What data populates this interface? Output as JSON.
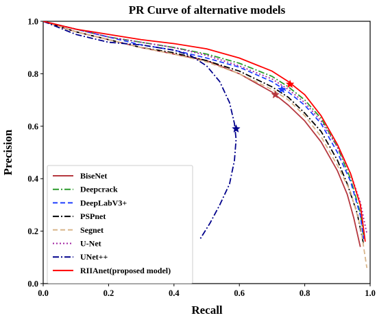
{
  "chart_data": {
    "type": "line",
    "title": "PR Curve of alternative models",
    "xlabel": "Recall",
    "ylabel": "Precision",
    "xlim": [
      0.0,
      1.0
    ],
    "ylim": [
      0.0,
      1.0
    ],
    "xticks": [
      "0.0",
      "0.2",
      "0.4",
      "0.6",
      "0.8",
      "1.0"
    ],
    "yticks": [
      "0.0",
      "0.2",
      "0.4",
      "0.6",
      "0.8",
      "1.0"
    ],
    "grid": false,
    "legend_position": "lower-left",
    "series": [
      {
        "name": "BiseNet",
        "color": "#b5373e",
        "dash": "solid",
        "x": [
          0.0,
          0.1,
          0.2,
          0.3,
          0.4,
          0.5,
          0.6,
          0.7,
          0.75,
          0.8,
          0.85,
          0.9,
          0.93,
          0.95,
          0.97
        ],
        "y": [
          1.0,
          0.96,
          0.93,
          0.9,
          0.875,
          0.85,
          0.8,
          0.73,
          0.68,
          0.62,
          0.54,
          0.43,
          0.34,
          0.25,
          0.14
        ],
        "marker": {
          "x": 0.71,
          "y": 0.72
        }
      },
      {
        "name": "Deepcrack",
        "color": "#2a9a2a",
        "dash": "dashdot",
        "x": [
          0.0,
          0.1,
          0.2,
          0.3,
          0.4,
          0.5,
          0.6,
          0.7,
          0.75,
          0.8,
          0.85,
          0.9,
          0.94,
          0.97,
          0.98
        ],
        "y": [
          1.0,
          0.97,
          0.94,
          0.92,
          0.9,
          0.875,
          0.84,
          0.79,
          0.75,
          0.7,
          0.63,
          0.52,
          0.4,
          0.27,
          0.18
        ],
        "marker": null
      },
      {
        "name": "DeepLabV3+",
        "color": "#1f3fff",
        "dash": "dashed",
        "x": [
          0.0,
          0.1,
          0.2,
          0.3,
          0.4,
          0.5,
          0.6,
          0.7,
          0.75,
          0.8,
          0.85,
          0.9,
          0.94,
          0.97,
          0.98
        ],
        "y": [
          1.0,
          0.97,
          0.94,
          0.91,
          0.89,
          0.86,
          0.825,
          0.77,
          0.73,
          0.68,
          0.61,
          0.5,
          0.39,
          0.26,
          0.17
        ],
        "marker": {
          "x": 0.73,
          "y": 0.74
        }
      },
      {
        "name": "PSPnet",
        "color": "#000000",
        "dash": "dashdot",
        "x": [
          0.0,
          0.1,
          0.2,
          0.3,
          0.4,
          0.5,
          0.6,
          0.7,
          0.75,
          0.8,
          0.85,
          0.9,
          0.93,
          0.96,
          0.98
        ],
        "y": [
          1.0,
          0.96,
          0.93,
          0.9,
          0.88,
          0.85,
          0.81,
          0.75,
          0.71,
          0.65,
          0.58,
          0.47,
          0.38,
          0.27,
          0.15
        ],
        "marker": null
      },
      {
        "name": "Segnet",
        "color": "#d8b58a",
        "dash": "dashed",
        "x": [
          0.0,
          0.1,
          0.2,
          0.3,
          0.4,
          0.5,
          0.6,
          0.7,
          0.75,
          0.8,
          0.85,
          0.9,
          0.94,
          0.97,
          0.99
        ],
        "y": [
          1.0,
          0.96,
          0.93,
          0.9,
          0.875,
          0.845,
          0.8,
          0.74,
          0.7,
          0.64,
          0.56,
          0.45,
          0.35,
          0.22,
          0.06
        ],
        "marker": null
      },
      {
        "name": "U-Net",
        "color": "#a020a0",
        "dash": "dotted",
        "x": [
          0.0,
          0.1,
          0.2,
          0.3,
          0.4,
          0.5,
          0.6,
          0.7,
          0.75,
          0.8,
          0.85,
          0.9,
          0.94,
          0.97,
          0.99
        ],
        "y": [
          1.0,
          0.97,
          0.94,
          0.92,
          0.9,
          0.87,
          0.83,
          0.78,
          0.74,
          0.69,
          0.62,
          0.52,
          0.42,
          0.31,
          0.19
        ],
        "marker": null
      },
      {
        "name": "UNet++",
        "color": "#00008b",
        "dash": "dashdot",
        "x": [
          0.0,
          0.1,
          0.2,
          0.3,
          0.4,
          0.45,
          0.5,
          0.54,
          0.57,
          0.585,
          0.59,
          0.585,
          0.57,
          0.54,
          0.51,
          0.48
        ],
        "y": [
          1.0,
          0.95,
          0.92,
          0.91,
          0.89,
          0.87,
          0.83,
          0.77,
          0.69,
          0.61,
          0.55,
          0.47,
          0.38,
          0.3,
          0.23,
          0.17
        ],
        "marker": {
          "x": 0.59,
          "y": 0.59
        }
      },
      {
        "name": "RIIAnet(proposed model)",
        "color": "#ff0000",
        "dash": "solid",
        "x": [
          0.0,
          0.1,
          0.2,
          0.3,
          0.4,
          0.5,
          0.6,
          0.7,
          0.75,
          0.8,
          0.85,
          0.9,
          0.94,
          0.97,
          0.985
        ],
        "y": [
          1.0,
          0.97,
          0.95,
          0.93,
          0.915,
          0.895,
          0.86,
          0.81,
          0.77,
          0.72,
          0.64,
          0.53,
          0.42,
          0.3,
          0.16
        ],
        "marker": {
          "x": 0.755,
          "y": 0.76
        }
      }
    ]
  }
}
